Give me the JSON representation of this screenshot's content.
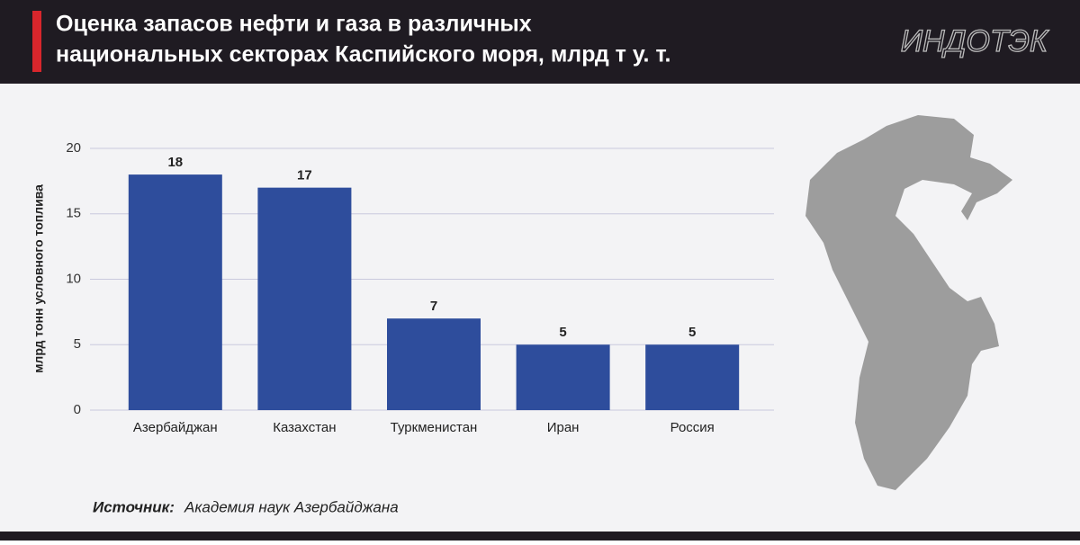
{
  "header": {
    "title_lines": [
      "Оценка запасов нефти и газа в различных",
      "национальных секторах Каспийского моря, млрд т у. т."
    ],
    "logo": "ИНДОТЭК"
  },
  "chart_data": {
    "type": "bar",
    "ylabel": "млрд тонн условного топлива",
    "categories": [
      "Азербайджан",
      "Казахстан",
      "Туркменистан",
      "Иран",
      "Россия"
    ],
    "values": [
      18,
      17,
      7,
      5,
      5
    ],
    "color": "#2e4d9c",
    "ylim": [
      0,
      20
    ],
    "yticks": [
      0,
      5,
      10,
      15,
      20
    ],
    "grid": true
  },
  "source": {
    "label": "Источник:",
    "text": "Академия наук Азербайджана"
  }
}
